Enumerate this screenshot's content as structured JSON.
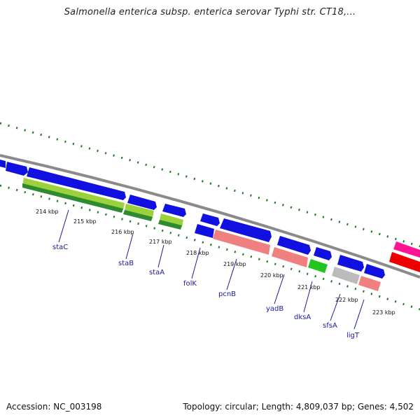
{
  "title": "Salmonella enterica subsp. enterica serovar Typhi str. CT18,...",
  "footer": {
    "accession": "Accession: NC_003198",
    "stats": "Topology: circular; Length: 4,809,037 bp; Genes: 4,502"
  },
  "colors": {
    "backbone": "#8a8a8a",
    "ticks": "#1f7a1f",
    "label": "#1a1a9a",
    "gene_blue": "#1010e0",
    "gene_green": "#9bd13a",
    "gene_salmon": "#f08080",
    "gene_gray": "#bbbbbb",
    "gene_lime": "#22c422",
    "gene_pink": "#ff1493",
    "gene_red": "#ee0000"
  },
  "kbp_labels": [
    "214 kbp",
    "215 kbp",
    "216 kbp",
    "217 kbp",
    "218 kbp",
    "219 kbp",
    "220 kbp",
    "221 kbp",
    "222 kbp",
    "223 kbp"
  ],
  "gene_labels": [
    "staC",
    "staB",
    "staA",
    "folK",
    "pcnB",
    "yadB",
    "dksA",
    "sfsA",
    "ligT"
  ]
}
